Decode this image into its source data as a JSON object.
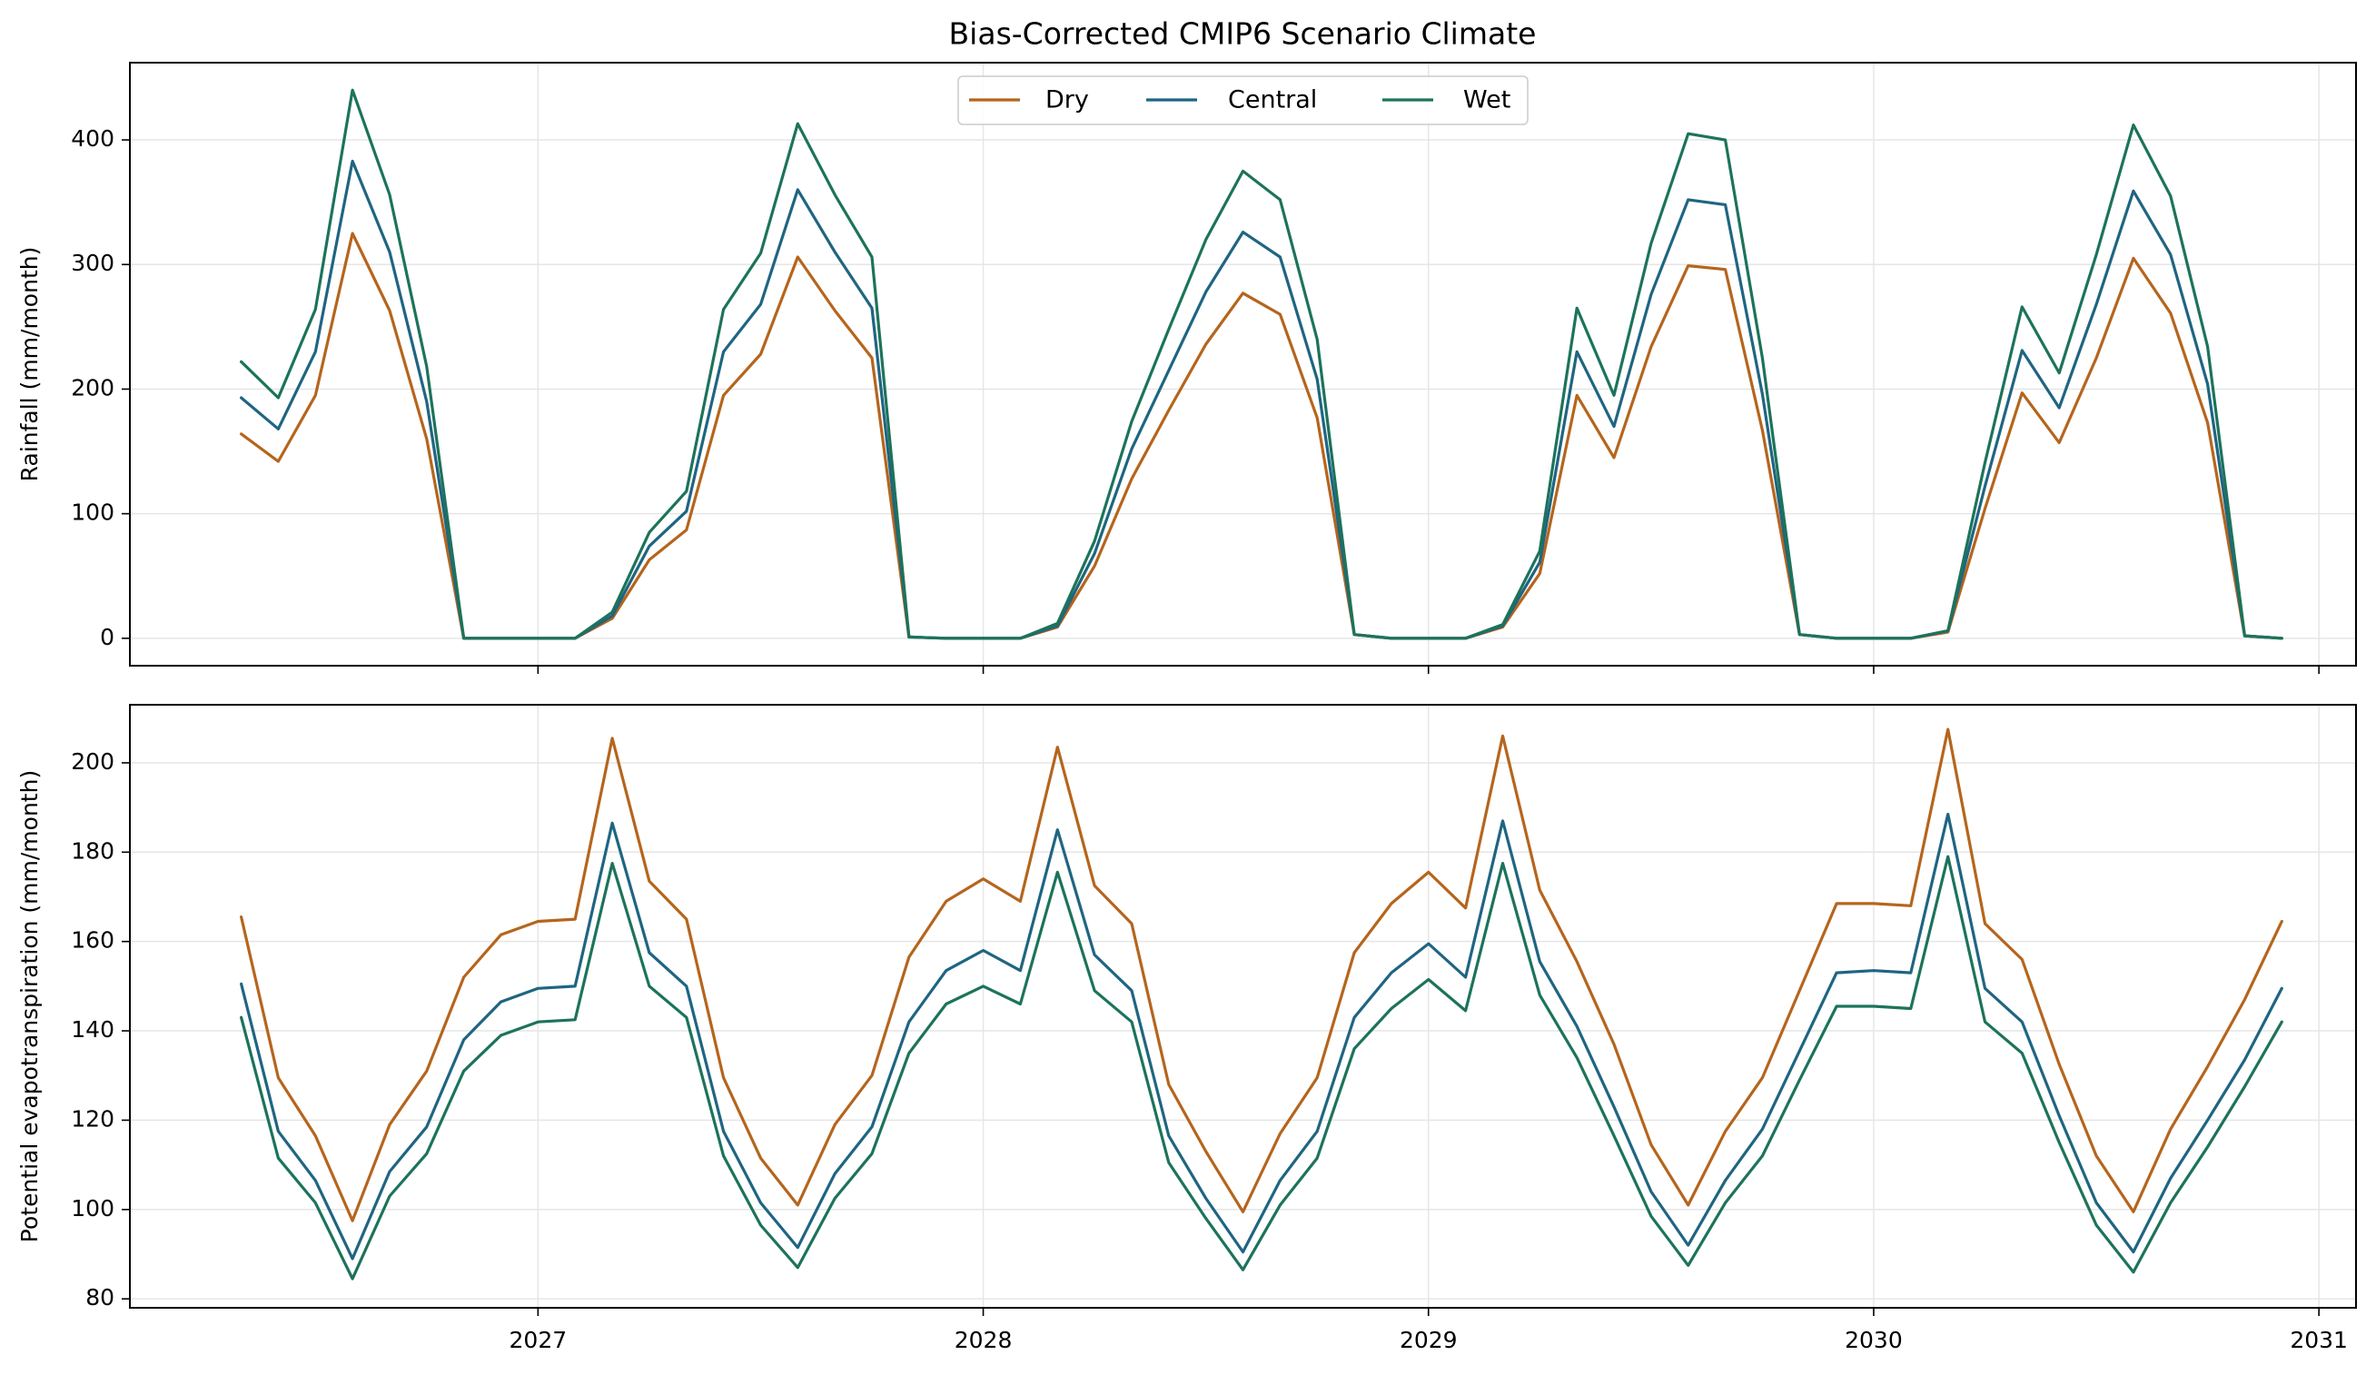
{
  "chart_data": {
    "type": "line",
    "title": "Bias-Corrected CMIP6 Scenario Climate",
    "x_tick_labels": [
      "2027",
      "2028",
      "2029",
      "2030",
      "2031"
    ],
    "x_ticks": [
      "2027-01",
      "2028-01",
      "2029-01",
      "2030-01",
      "2031-01"
    ],
    "x": [
      "2026-05",
      "2026-06",
      "2026-07",
      "2026-08",
      "2026-09",
      "2026-10",
      "2026-11",
      "2026-12",
      "2027-01",
      "2027-02",
      "2027-03",
      "2027-04",
      "2027-05",
      "2027-06",
      "2027-07",
      "2027-08",
      "2027-09",
      "2027-10",
      "2027-11",
      "2027-12",
      "2028-01",
      "2028-02",
      "2028-03",
      "2028-04",
      "2028-05",
      "2028-06",
      "2028-07",
      "2028-08",
      "2028-09",
      "2028-10",
      "2028-11",
      "2028-12",
      "2029-01",
      "2029-02",
      "2029-03",
      "2029-04",
      "2029-05",
      "2029-06",
      "2029-07",
      "2029-08",
      "2029-09",
      "2029-10",
      "2029-11",
      "2029-12",
      "2030-01",
      "2030-02",
      "2030-03",
      "2030-04",
      "2030-05",
      "2030-06",
      "2030-07",
      "2030-08",
      "2030-09",
      "2030-10",
      "2030-11",
      "2030-12"
    ],
    "legend": {
      "placement": "upper center",
      "ncol": 3
    },
    "grid": true,
    "colors": {
      "Dry": "#b5651d",
      "Central": "#1f6582",
      "Wet": "#1c735b"
    },
    "panels": [
      {
        "ylabel": "Rainfall (mm/month)",
        "ylim": [
          -22,
          462
        ],
        "yticks": [
          0,
          100,
          200,
          300,
          400
        ],
        "series": [
          {
            "name": "Dry",
            "values": [
              164,
              142,
              195,
              325,
              263,
              160,
              0,
              0,
              0,
              0,
              16,
              63,
              87,
              195,
              228,
              306,
              263,
              225,
              1,
              0,
              0,
              0,
              9,
              58,
              128,
              183,
              236,
              277,
              260,
              177,
              3,
              0,
              0,
              0,
              9,
              52,
              195,
              145,
              234,
              299,
              296,
              167,
              3,
              0,
              0,
              0,
              5,
              104,
              197,
              157,
              225,
              305,
              261,
              173,
              2,
              0
            ]
          },
          {
            "name": "Central",
            "values": [
              193,
              168,
              230,
              383,
              310,
              190,
              0,
              0,
              0,
              0,
              18,
              74,
              102,
              230,
              268,
              360,
              310,
              265,
              1,
              0,
              0,
              0,
              10,
              68,
              152,
              215,
              278,
              326,
              306,
              208,
              3,
              0,
              0,
              0,
              10,
              61,
              230,
              170,
              276,
              352,
              348,
              196,
              3,
              0,
              0,
              0,
              6,
              122,
              231,
              185,
              268,
              359,
              308,
              204,
              2,
              0
            ]
          },
          {
            "name": "Wet",
            "values": [
              222,
              193,
              264,
              440,
              356,
              218,
              0,
              0,
              0,
              0,
              21,
              85,
              118,
              264,
              309,
              413,
              356,
              306,
              1,
              0,
              0,
              0,
              12,
              78,
              174,
              248,
              320,
              375,
              352,
              240,
              3,
              0,
              0,
              0,
              11,
              70,
              265,
              195,
              317,
              405,
              400,
              225,
              3,
              0,
              0,
              0,
              6,
              141,
              266,
              213,
              308,
              412,
              355,
              234,
              2,
              0
            ]
          }
        ]
      },
      {
        "ylabel": "Potential evapotranspiration (mm/month)",
        "ylim": [
          78,
          213
        ],
        "yticks": [
          80,
          100,
          120,
          140,
          160,
          180,
          200
        ],
        "series": [
          {
            "name": "Dry",
            "values": [
              165.5,
              129.5,
              116.5,
              97.5,
              119,
              131,
              152,
              161.5,
              164.5,
              165,
              205.5,
              173.5,
              165,
              129.5,
              111.5,
              101,
              119,
              130,
              156.5,
              169,
              174,
              169,
              203.5,
              172.5,
              164,
              128,
              113,
              99.5,
              117,
              129.5,
              157.5,
              168.5,
              175.5,
              167.5,
              206,
              171.5,
              155.5,
              137,
              114.5,
              101,
              117.5,
              129.5,
              149,
              168.5,
              168.5,
              168,
              207.5,
              164,
              156,
              132.5,
              112,
              99.5,
              118,
              132,
              147,
              164.5
            ]
          },
          {
            "name": "Central",
            "values": [
              150.5,
              117.5,
              106.5,
              89,
              108.5,
              118.5,
              138,
              146.5,
              149.5,
              150,
              186.5,
              157.5,
              150,
              117.5,
              101.5,
              91.5,
              108,
              118.5,
              142,
              153.5,
              158,
              153.5,
              185,
              157,
              149,
              116.5,
              102.5,
              90.5,
              106.5,
              117.5,
              143,
              153,
              159.5,
              152,
              187,
              155.5,
              141,
              123,
              104,
              92,
              106.5,
              118,
              135.5,
              153,
              153.5,
              153,
              188.5,
              149.5,
              142,
              121,
              101.5,
              90.5,
              107,
              120,
              133.5,
              149.5
            ]
          },
          {
            "name": "Wet",
            "values": [
              143,
              111.5,
              101.5,
              84.5,
              103,
              112.5,
              131,
              139,
              142,
              142.5,
              177.5,
              150,
              143,
              112,
              96.5,
              87,
              102.5,
              112.5,
              135,
              146,
              150,
              146,
              175.5,
              149,
              142,
              110.5,
              98,
              86.5,
              101,
              111.5,
              136,
              145,
              151.5,
              144.5,
              177.5,
              148,
              134,
              116.5,
              98.5,
              87.5,
              101.5,
              112,
              129,
              145.5,
              145.5,
              145,
              179,
              142,
              135,
              115,
              96.5,
              86,
              101.5,
              114,
              127.5,
              142
            ]
          }
        ]
      }
    ]
  }
}
